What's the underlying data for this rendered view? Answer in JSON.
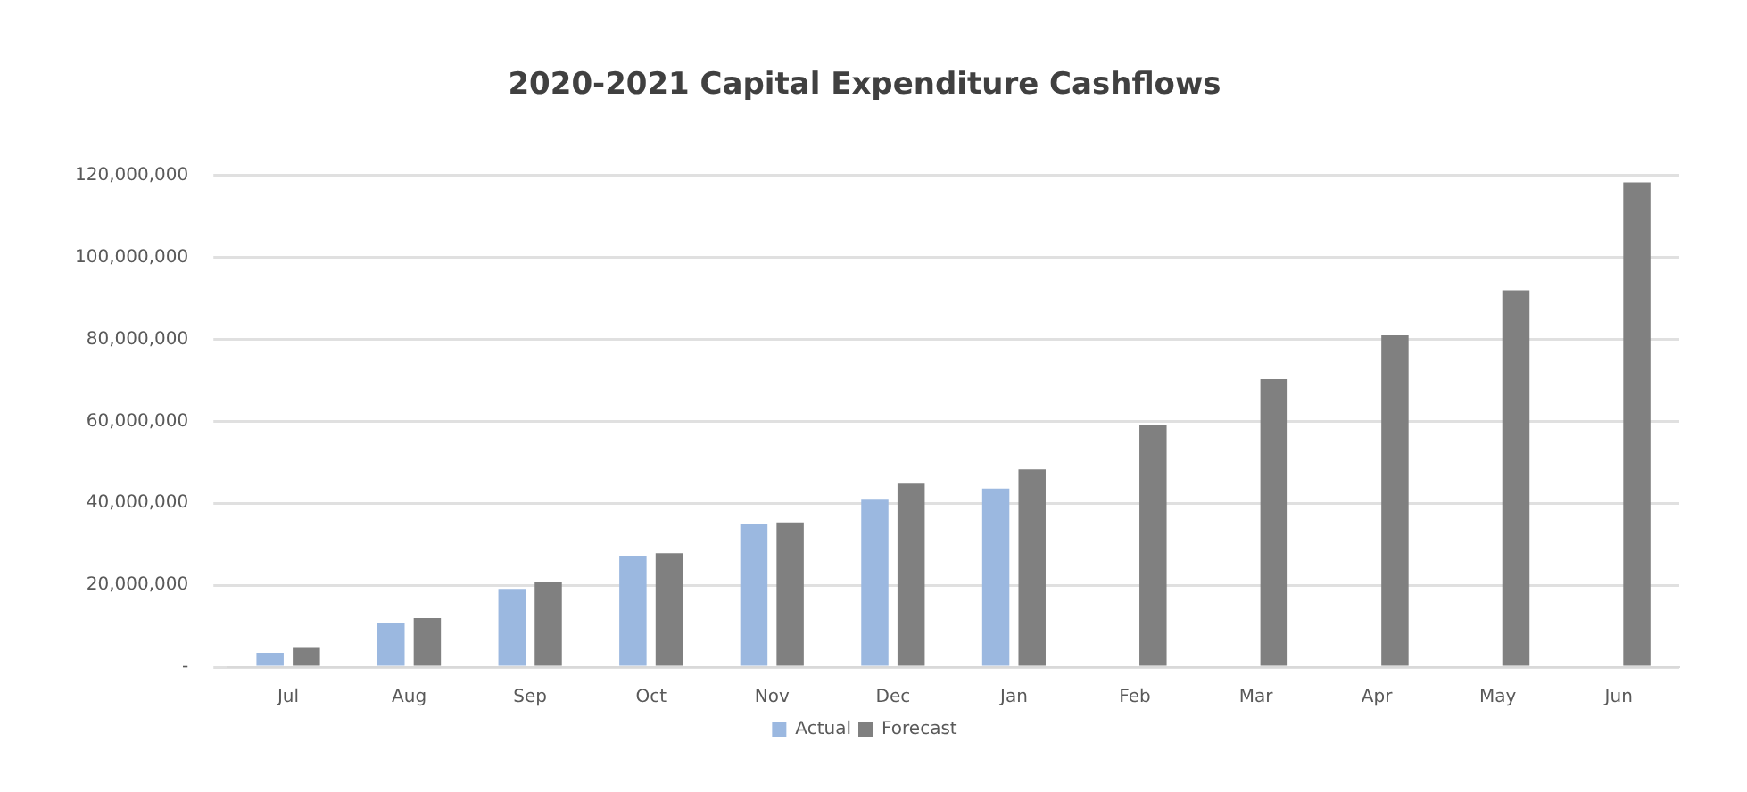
{
  "chart_data": {
    "type": "bar",
    "title": "2020-2021 Capital Expenditure Cashflows",
    "categories": [
      "Jul",
      "Aug",
      "Sep",
      "Oct",
      "Nov",
      "Dec",
      "Jan",
      "Feb",
      "Mar",
      "Apr",
      "May",
      "Jun"
    ],
    "series": [
      {
        "name": "Actual",
        "color": "#9bb8e0",
        "values": [
          3500000,
          10900000,
          19100000,
          27200000,
          34900000,
          40900000,
          43600000,
          null,
          null,
          null,
          null,
          null
        ]
      },
      {
        "name": "Forecast",
        "color": "#808080",
        "values": [
          4900000,
          12000000,
          20800000,
          27800000,
          35300000,
          44800000,
          48300000,
          59000000,
          70300000,
          81000000,
          92000000,
          118300000
        ]
      }
    ],
    "ylim": [
      0,
      120000000
    ],
    "yticks": [
      {
        "value": 0,
        "label": "-"
      },
      {
        "value": 20000000,
        "label": "20,000,000"
      },
      {
        "value": 40000000,
        "label": "40,000,000"
      },
      {
        "value": 60000000,
        "label": "60,000,000"
      },
      {
        "value": 80000000,
        "label": "80,000,000"
      },
      {
        "value": 100000000,
        "label": "100,000,000"
      },
      {
        "value": 120000000,
        "label": "120,000,000"
      }
    ],
    "grid": "y",
    "legend": "bottom"
  }
}
